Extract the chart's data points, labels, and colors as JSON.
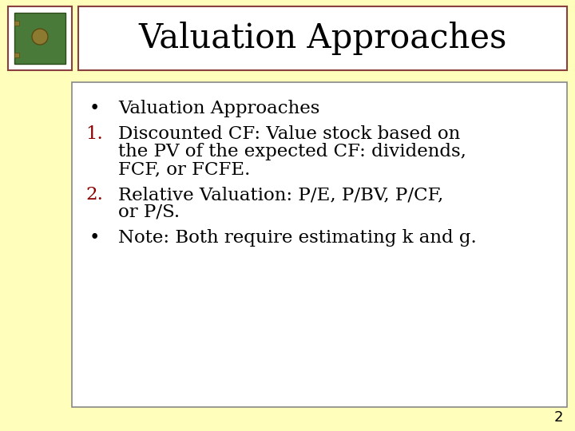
{
  "title": "Valuation Approaches",
  "background_color": "#FFFFBB",
  "title_box_facecolor": "#FFFFFF",
  "title_box_edgecolor": "#8B4040",
  "content_box_facecolor": "#FFFFFF",
  "content_box_edgecolor": "#888888",
  "icon_box_edgecolor": "#8B4040",
  "title_font_size": 30,
  "title_color": "#000000",
  "text_color": "#000000",
  "number_color": "#8B0000",
  "bullet_color": "#8B0000",
  "content_font_size": 16.5,
  "page_number": "2",
  "page_number_fontsize": 13,
  "items": [
    {
      "marker": "•",
      "marker_color": "#000000",
      "lines": [
        "Valuation Approaches"
      ]
    },
    {
      "marker": "1.",
      "marker_color": "#8B0000",
      "lines": [
        "Discounted CF: Value stock based on",
        "the PV of the expected CF: dividends,",
        "FCF, or FCFE."
      ]
    },
    {
      "marker": "2.",
      "marker_color": "#8B0000",
      "lines": [
        "Relative Valuation: P/E, P/BV, P/CF,",
        "or P/S."
      ]
    },
    {
      "marker": "•",
      "marker_color": "#000000",
      "lines": [
        "Note: Both require estimating k and g."
      ]
    }
  ]
}
